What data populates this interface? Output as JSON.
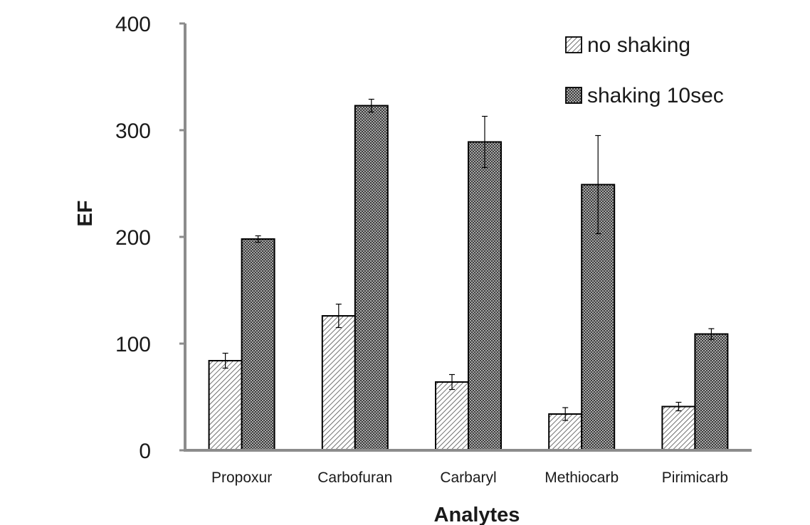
{
  "chart_data": {
    "type": "bar",
    "xlabel": "Analytes",
    "ylabel": "EF",
    "ylim": [
      0,
      400
    ],
    "yticks": [
      "0",
      "100",
      "200",
      "300",
      "400"
    ],
    "grid": false,
    "legend_position": "top-right",
    "categories": [
      "Propoxur",
      "Carbofuran",
      "Carbaryl",
      "Methiocarb",
      "Pirimicarb"
    ],
    "series": [
      {
        "name": "no shaking",
        "pattern": "diagonal-hatch",
        "values": [
          84,
          126,
          64,
          34,
          41
        ],
        "errors": [
          7,
          11,
          7,
          6,
          4
        ]
      },
      {
        "name": "shaking 10sec",
        "pattern": "dense-dots",
        "values": [
          198,
          323,
          289,
          249,
          109
        ],
        "errors": [
          3,
          6,
          24,
          46,
          5
        ]
      }
    ]
  },
  "colors": {
    "axis": "#8c8c8c",
    "bar_stroke": "#000000",
    "hatch_background": "#ffffff",
    "dots_background": "#b0b0b0",
    "dots_foreground": "#3c3c3c"
  }
}
